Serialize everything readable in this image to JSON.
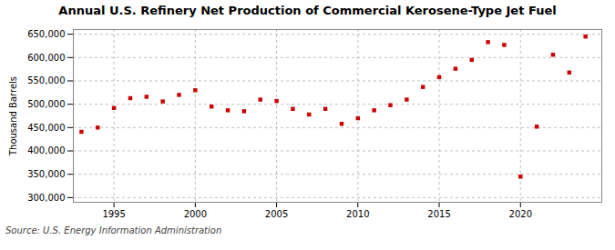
{
  "chart_data": {
    "type": "scatter",
    "title": "Annual U.S. Refinery Net Production of Commercial Kerosene-Type Jet Fuel",
    "ylabel": "Thousand Barrels",
    "source": "Source: U.S. Energy Information Administration",
    "x": [
      1993,
      1994,
      1995,
      1996,
      1997,
      1998,
      1999,
      2000,
      2001,
      2002,
      2003,
      2004,
      2005,
      2006,
      2007,
      2008,
      2009,
      2010,
      2011,
      2012,
      2013,
      2014,
      2015,
      2016,
      2017,
      2018,
      2019,
      2020,
      2021,
      2022,
      2023,
      2024
    ],
    "values": [
      441000,
      450000,
      492000,
      513000,
      516000,
      506000,
      520000,
      530000,
      495000,
      487000,
      485000,
      510000,
      507000,
      490000,
      478000,
      490000,
      458000,
      470000,
      487000,
      498000,
      510000,
      537000,
      558000,
      576000,
      595000,
      633000,
      627000,
      345000,
      452000,
      606000,
      568000,
      645000
    ],
    "color": "#cc0000",
    "marker": "square",
    "xlim": [
      1992.5,
      2025
    ],
    "xticks": [
      1995,
      2000,
      2005,
      2010,
      2015,
      2020
    ],
    "ylim": [
      290000,
      660000
    ],
    "yticks": [
      {
        "value": 300000,
        "label": "300,000"
      },
      {
        "value": 350000,
        "label": "350,000"
      },
      {
        "value": 400000,
        "label": "400,000"
      },
      {
        "value": 450000,
        "label": "450,000"
      },
      {
        "value": 500000,
        "label": "500,000"
      },
      {
        "value": 550000,
        "label": "550,000"
      },
      {
        "value": 600000,
        "label": "600,000"
      },
      {
        "value": 650000,
        "label": "650,000"
      }
    ],
    "grid": true
  }
}
